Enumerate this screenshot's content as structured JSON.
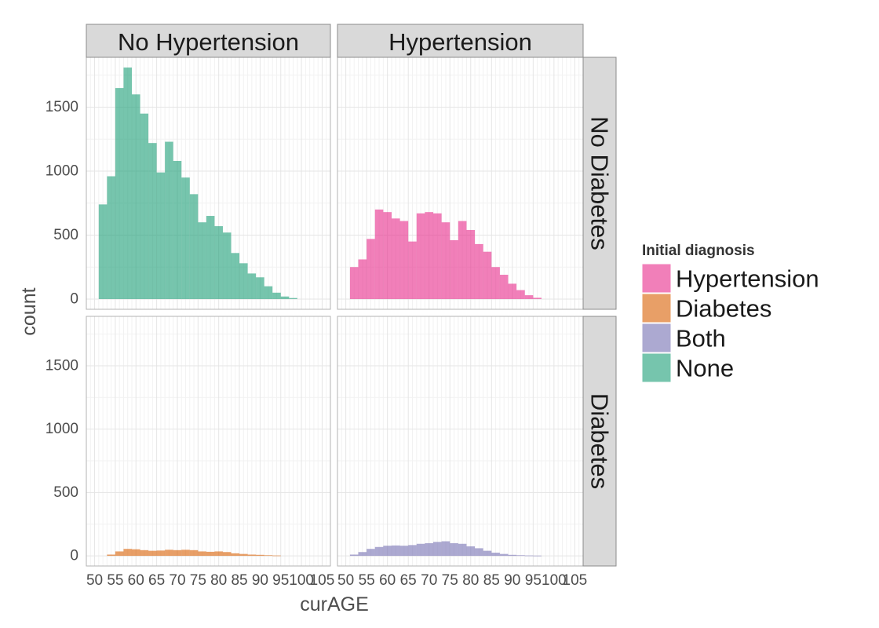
{
  "chart_data": {
    "type": "bar",
    "subtype": "faceted-histogram",
    "xlabel": "curAGE",
    "ylabel": "count",
    "xlim": [
      48,
      107
    ],
    "ylim": [
      -80,
      1890
    ],
    "x_ticks": [
      50,
      55,
      60,
      65,
      70,
      75,
      80,
      85,
      90,
      95,
      100,
      105
    ],
    "y_ticks": [
      0,
      500,
      1000,
      1500
    ],
    "bin_width": 2,
    "grid": true,
    "facet_columns": [
      "No Hypertension",
      "Hypertension"
    ],
    "facet_rows": [
      "No Diabetes",
      "Diabetes"
    ],
    "legend": {
      "title": "Initial diagnosis",
      "position": "right",
      "entries": [
        {
          "name": "Hypertension",
          "color": "#e7298a"
        },
        {
          "name": "Diabetes",
          "color": "#d95f02"
        },
        {
          "name": "Both",
          "color": "#7570b3"
        },
        {
          "name": "None",
          "color": "#1b9e77"
        }
      ]
    },
    "panels": [
      {
        "row": 0,
        "col": 0,
        "series": "None",
        "bins": [
          [
            51,
            52,
            740
          ],
          [
            53,
            54,
            960
          ],
          [
            55,
            56,
            1650
          ],
          [
            57,
            58,
            1810
          ],
          [
            59,
            60,
            1600
          ],
          [
            61,
            62,
            1450
          ],
          [
            63,
            64,
            1220
          ],
          [
            65,
            66,
            990
          ],
          [
            67,
            68,
            1230
          ],
          [
            69,
            70,
            1080
          ],
          [
            71,
            72,
            950
          ],
          [
            73,
            74,
            820
          ],
          [
            75,
            76,
            600
          ],
          [
            77,
            78,
            650
          ],
          [
            79,
            80,
            570
          ],
          [
            81,
            82,
            520
          ],
          [
            83,
            84,
            360
          ],
          [
            85,
            86,
            280
          ],
          [
            87,
            88,
            200
          ],
          [
            89,
            90,
            170
          ],
          [
            91,
            92,
            100
          ],
          [
            93,
            94,
            50
          ],
          [
            95,
            96,
            20
          ],
          [
            97,
            98,
            8
          ]
        ]
      },
      {
        "row": 0,
        "col": 1,
        "series": "Hypertension",
        "bins": [
          [
            51,
            52,
            250
          ],
          [
            53,
            54,
            310
          ],
          [
            55,
            56,
            470
          ],
          [
            57,
            58,
            700
          ],
          [
            59,
            60,
            680
          ],
          [
            61,
            62,
            630
          ],
          [
            63,
            64,
            610
          ],
          [
            65,
            66,
            450
          ],
          [
            67,
            68,
            670
          ],
          [
            69,
            70,
            680
          ],
          [
            71,
            72,
            670
          ],
          [
            73,
            74,
            600
          ],
          [
            75,
            76,
            460
          ],
          [
            77,
            78,
            610
          ],
          [
            79,
            80,
            540
          ],
          [
            81,
            82,
            430
          ],
          [
            83,
            84,
            370
          ],
          [
            85,
            86,
            250
          ],
          [
            87,
            88,
            190
          ],
          [
            89,
            90,
            120
          ],
          [
            91,
            92,
            70
          ],
          [
            93,
            94,
            30
          ],
          [
            95,
            96,
            10
          ]
        ]
      },
      {
        "row": 1,
        "col": 0,
        "series": "Diabetes",
        "bins": [
          [
            53,
            54,
            10
          ],
          [
            55,
            56,
            35
          ],
          [
            57,
            58,
            55
          ],
          [
            59,
            60,
            52
          ],
          [
            61,
            62,
            45
          ],
          [
            63,
            64,
            40
          ],
          [
            65,
            66,
            42
          ],
          [
            67,
            68,
            48
          ],
          [
            69,
            70,
            45
          ],
          [
            71,
            72,
            48
          ],
          [
            73,
            74,
            45
          ],
          [
            75,
            76,
            35
          ],
          [
            77,
            78,
            32
          ],
          [
            79,
            80,
            35
          ],
          [
            81,
            82,
            30
          ],
          [
            83,
            84,
            20
          ],
          [
            85,
            86,
            15
          ],
          [
            87,
            88,
            10
          ],
          [
            89,
            90,
            8
          ],
          [
            91,
            92,
            5
          ],
          [
            93,
            94,
            3
          ]
        ]
      },
      {
        "row": 1,
        "col": 1,
        "series": "Both",
        "bins": [
          [
            51,
            52,
            10
          ],
          [
            53,
            54,
            30
          ],
          [
            55,
            56,
            55
          ],
          [
            57,
            58,
            70
          ],
          [
            59,
            60,
            80
          ],
          [
            61,
            62,
            82
          ],
          [
            63,
            64,
            80
          ],
          [
            65,
            66,
            85
          ],
          [
            67,
            68,
            95
          ],
          [
            69,
            70,
            100
          ],
          [
            71,
            72,
            110
          ],
          [
            73,
            74,
            115
          ],
          [
            75,
            76,
            100
          ],
          [
            77,
            78,
            95
          ],
          [
            79,
            80,
            75
          ],
          [
            81,
            82,
            60
          ],
          [
            83,
            84,
            40
          ],
          [
            85,
            86,
            25
          ],
          [
            87,
            88,
            15
          ],
          [
            89,
            90,
            8
          ],
          [
            91,
            92,
            5
          ],
          [
            93,
            94,
            3
          ],
          [
            95,
            96,
            2
          ]
        ]
      }
    ]
  }
}
